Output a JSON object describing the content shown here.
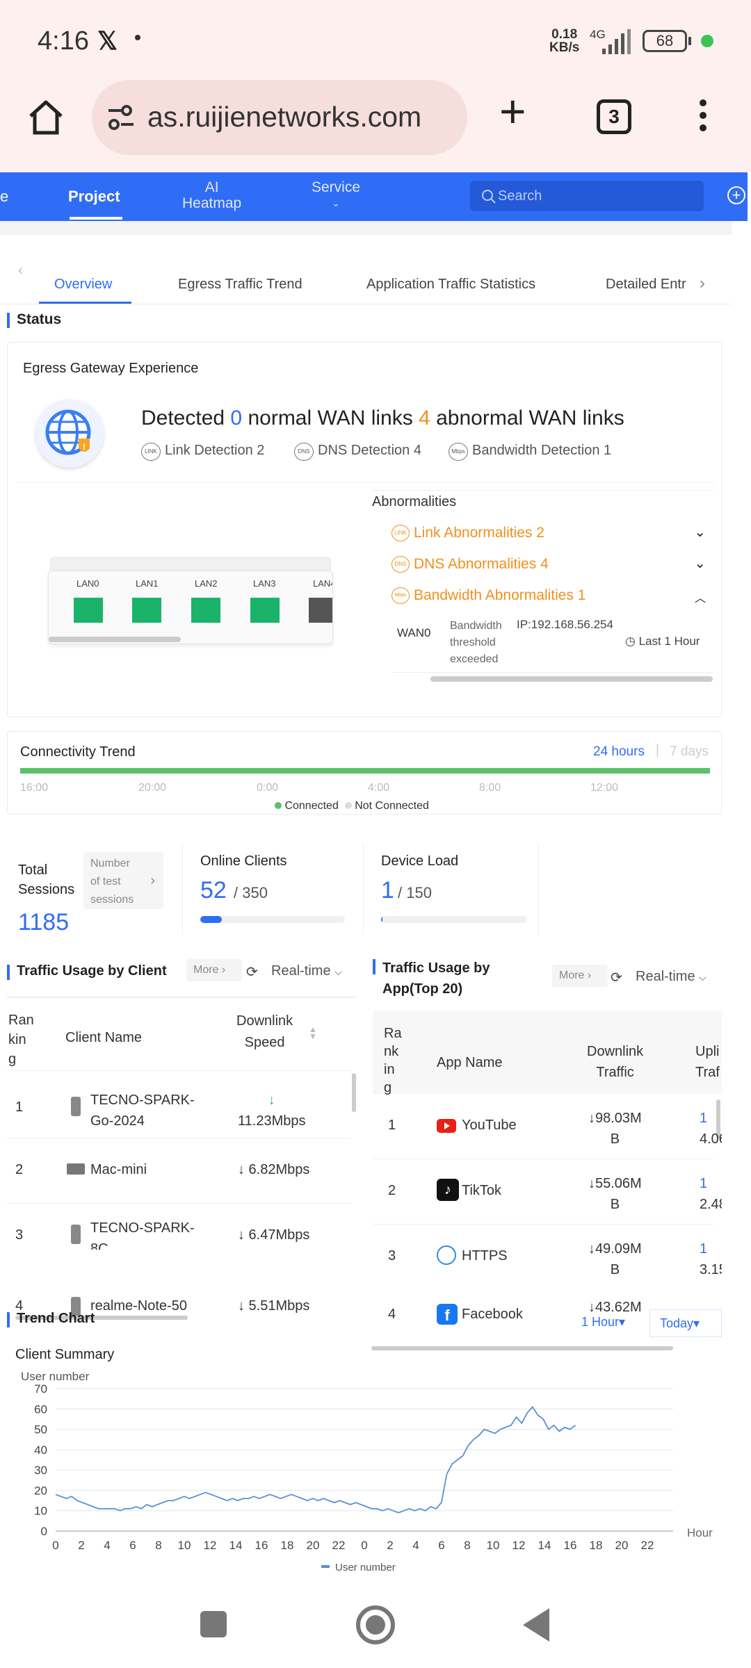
{
  "status_bar": {
    "time": "4:16",
    "speed_top": "0.18",
    "speed_bottom": "KB/s",
    "network": "4G",
    "battery": "68"
  },
  "browser": {
    "url": "as.ruijienetworks.com",
    "tab_count": "3"
  },
  "nav": {
    "partial": "e",
    "project": "Project",
    "ai_line1": "AI",
    "ai_line2": "Heatmap",
    "service": "Service",
    "search_placeholder": "Search"
  },
  "tabs": {
    "overview": "Overview",
    "egress": "Egress Traffic Trend",
    "app_stats": "Application Traffic Statistics",
    "detailed": "Detailed Entr"
  },
  "status": {
    "title": "Status",
    "egress_title": "Egress Gateway Experience",
    "detected_prefix": "Detected",
    "normal_count": "0",
    "normal_text": "normal WAN links",
    "abnormal_count": "4",
    "abnormal_text": "abnormal WAN links",
    "link_detection": "Link Detection 2",
    "dns_detection": "DNS Detection 4",
    "bandwidth_detection": "Bandwidth Detection 1",
    "ports": [
      "LAN0",
      "LAN1",
      "LAN2",
      "LAN3",
      "LAN4"
    ],
    "abnormalities_title": "Abnormalities",
    "link_abn": "Link Abnormalities 2",
    "dns_abn": "DNS Abnormalities 4",
    "bw_abn": "Bandwidth Abnormalities 1",
    "wan": "WAN0",
    "bw_line1": "Bandwidth",
    "bw_line2": "threshold",
    "bw_line3": "exceeded",
    "ip": "IP:192.168.56.254",
    "last": "Last 1 Hour",
    "icon_link": "LINK",
    "icon_dns": "DNS",
    "icon_mbps": "Mbps"
  },
  "connectivity": {
    "title": "Connectivity Trend",
    "range_active": "24 hours",
    "range_inactive": "7 days",
    "ticks": [
      "16:00",
      "20:00",
      "0:00",
      "4:00",
      "8:00",
      "12:00"
    ],
    "legend_connected": "Connected",
    "legend_not": "Not Connected",
    "color_connected": "#5cc26a"
  },
  "stats": {
    "sessions_label1": "Total",
    "sessions_label2": "Sessions",
    "sessions_value": "1185",
    "test_line1": "Number",
    "test_line2": "of test",
    "test_line3": "sessions",
    "clients_label": "Online Clients",
    "clients_value": "52",
    "clients_total": "/ 350",
    "clients_fraction": 0.149,
    "load_label": "Device Load",
    "load_value": "1",
    "load_total": "/ 150",
    "load_fraction": 0.007
  },
  "client_traffic": {
    "title": "Traffic Usage by Client",
    "more": "More",
    "period": "Real-time",
    "col_rank_1": "Ran",
    "col_rank_2": "kin",
    "col_rank_3": "g",
    "col_name": "Client Name",
    "col_speed_1": "Downlink",
    "col_speed_2": "Speed",
    "rows": [
      {
        "rank": "1",
        "name1": "TECNO-SPARK-",
        "name2": "Go-2024",
        "speed1": "↓",
        "speed2": "11.23Mbps"
      },
      {
        "rank": "2",
        "name1": "Mac-mini",
        "name2": "",
        "speed1": "↓ 6.82Mbps",
        "speed2": ""
      },
      {
        "rank": "3",
        "name1": "TECNO-SPARK-",
        "name2": "8C",
        "speed1": "↓ 6.47Mbps",
        "speed2": ""
      },
      {
        "rank": "4",
        "name1": "realme-Note-50",
        "name2": "",
        "speed1": "↓ 5.51Mbps",
        "speed2": ""
      }
    ]
  },
  "app_traffic": {
    "title_line1": "Traffic Usage by",
    "title_line2": "App(Top 20)",
    "more": "More",
    "period": "Real-time",
    "col_rank_1": "Ra",
    "col_rank_2": "nk",
    "col_rank_3": "in",
    "col_rank_4": "g",
    "col_name": "App Name",
    "col_down_1": "Downlink",
    "col_down_2": "Traffic",
    "col_up_1": "Upli",
    "col_up_2": "Traf",
    "rows": [
      {
        "rank": "1",
        "name": "YouTube",
        "down1": "↓98.03M",
        "down2": "B",
        "up1": "1",
        "up2": "4.06"
      },
      {
        "rank": "2",
        "name": "TikTok",
        "down1": "↓55.06M",
        "down2": "B",
        "up1": "1",
        "up2": "2.48"
      },
      {
        "rank": "3",
        "name": "HTTPS",
        "down1": "↓49.09M",
        "down2": "B",
        "up1": "1",
        "up2": "3.15"
      },
      {
        "rank": "4",
        "name": "Facebook",
        "down1": "↓43.62M",
        "down2": "",
        "up1": "1",
        "up2": ""
      }
    ],
    "hour_dropdown": "1 Hour",
    "today_dropdown": "Today"
  },
  "trend": {
    "title": "Trend Chart",
    "subtitle": "Client Summary"
  },
  "chart_data": {
    "type": "line",
    "title": "Client Summary",
    "ylabel": "User number",
    "xlabel": "Hour",
    "ylim": [
      0,
      70
    ],
    "yticks": [
      0,
      10,
      20,
      30,
      40,
      50,
      60,
      70
    ],
    "xticks": [
      "0",
      "2",
      "4",
      "6",
      "8",
      "10",
      "12",
      "14",
      "16",
      "18",
      "20",
      "22",
      "0",
      "2",
      "4",
      "6",
      "8",
      "10",
      "12",
      "14",
      "16",
      "18",
      "20",
      "22"
    ],
    "legend": "User number",
    "series": [
      {
        "name": "User number",
        "color": "#5b8fd9",
        "values": [
          18,
          17,
          16,
          17,
          15,
          14,
          13,
          12,
          11,
          11,
          11,
          11,
          10,
          11,
          11,
          12,
          11,
          13,
          12,
          13,
          14,
          15,
          15,
          16,
          17,
          16,
          17,
          18,
          19,
          18,
          17,
          16,
          15,
          16,
          15,
          16,
          16,
          17,
          16,
          17,
          18,
          17,
          16,
          17,
          18,
          17,
          16,
          15,
          16,
          15,
          16,
          15,
          14,
          15,
          14,
          13,
          14,
          13,
          12,
          11,
          11,
          10,
          11,
          10,
          9,
          10,
          11,
          10,
          11,
          10,
          12,
          11,
          14,
          28,
          33,
          35,
          37,
          42,
          45,
          47,
          50,
          49,
          48,
          50,
          51,
          52,
          56,
          53,
          58,
          61,
          57,
          55,
          50,
          52,
          49,
          51,
          50,
          52
        ]
      }
    ]
  },
  "android_nav": {
    "recent": "recent-apps",
    "home": "home",
    "back": "back"
  }
}
